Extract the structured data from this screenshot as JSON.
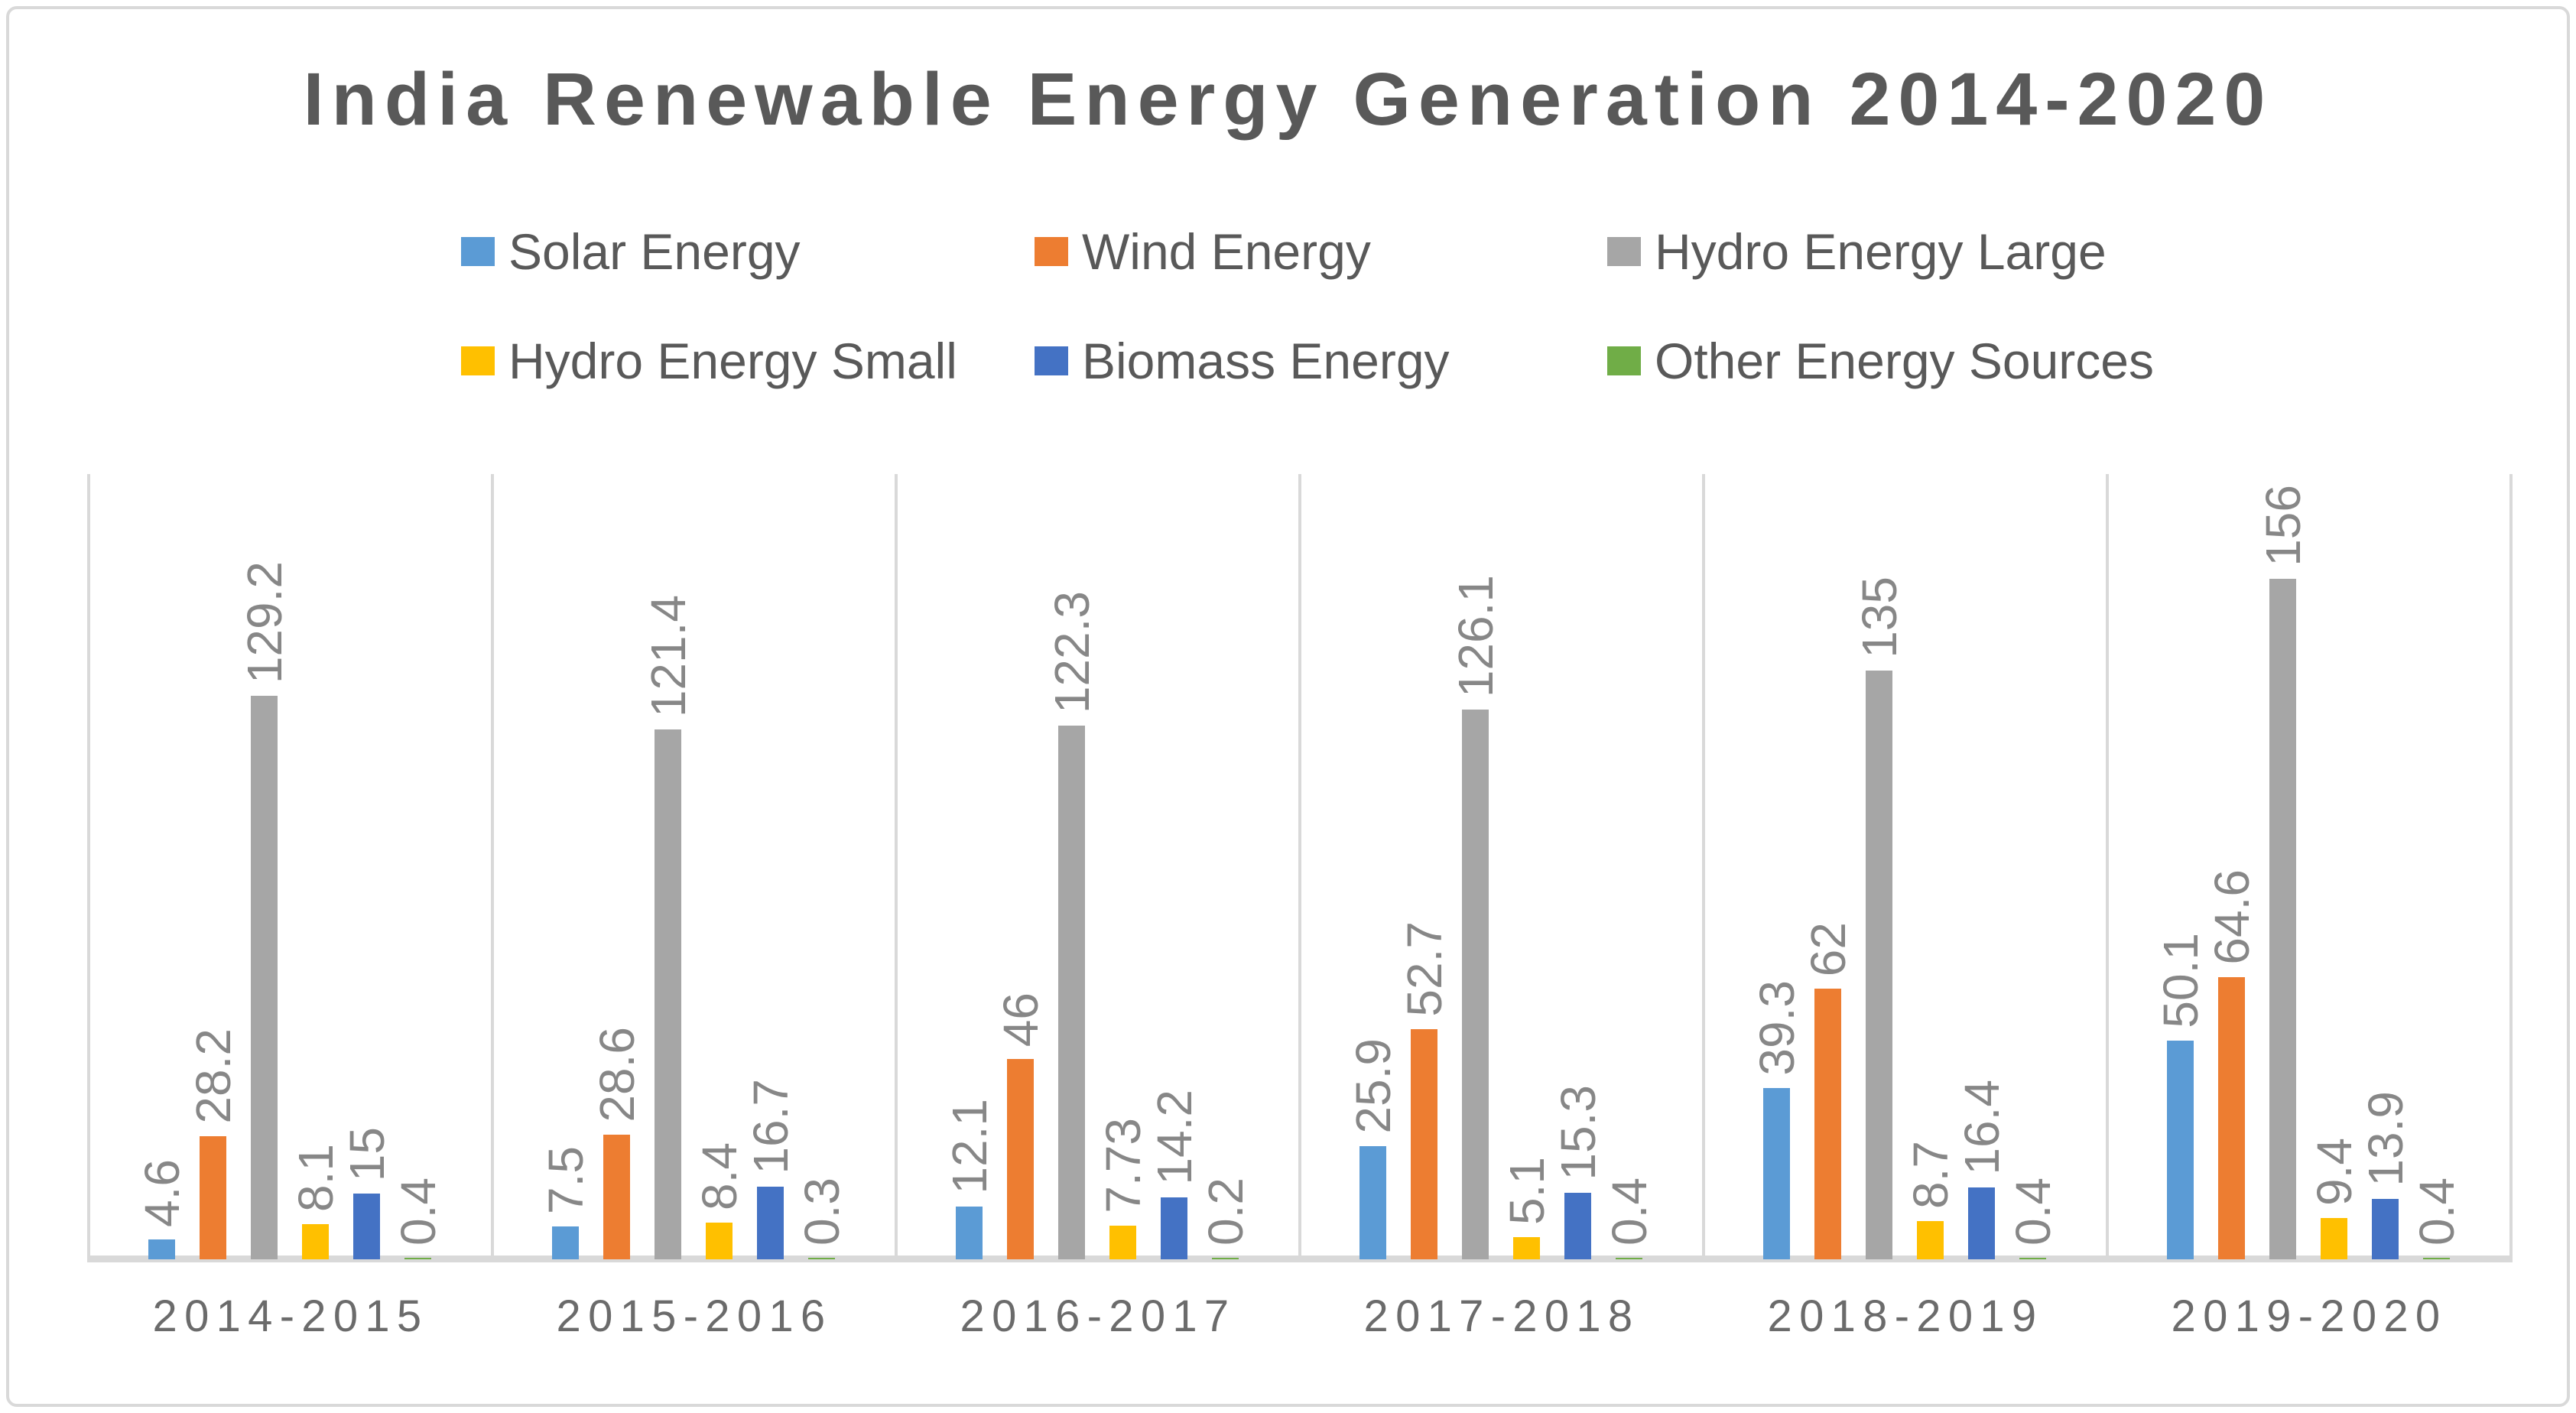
{
  "chart_data": {
    "type": "bar",
    "title": "India Renewable Energy Generation 2014-2020",
    "categories": [
      "2014-2015",
      "2015-2016",
      "2016-2017",
      "2017-2018",
      "2018-2019",
      "2019-2020"
    ],
    "series": [
      {
        "name": "Solar Energy",
        "color": "#5B9BD5",
        "values": [
          4.6,
          7.5,
          12.1,
          25.9,
          39.3,
          50.1
        ]
      },
      {
        "name": "Wind Energy",
        "color": "#ED7D31",
        "values": [
          28.2,
          28.6,
          46,
          52.7,
          62,
          64.6
        ]
      },
      {
        "name": "Hydro Energy Large",
        "color": "#A6A6A6",
        "values": [
          129.2,
          121.4,
          122.3,
          126.1,
          135,
          156
        ]
      },
      {
        "name": "Hydro Energy Small",
        "color": "#FFC000",
        "values": [
          8.1,
          8.4,
          7.73,
          5.1,
          8.7,
          9.4
        ]
      },
      {
        "name": "Biomass Energy",
        "color": "#4472C4",
        "values": [
          15,
          16.7,
          14.2,
          15.3,
          16.4,
          13.9
        ]
      },
      {
        "name": "Other Energy Sources",
        "color": "#70AD47",
        "values": [
          0.4,
          0.3,
          0.2,
          0.4,
          0.4,
          0.4
        ]
      }
    ],
    "ylim": [
      0,
      180
    ],
    "legend_position": "top, two rows",
    "grid": "vertical category divider lines only",
    "data_labels": "values shown above bars, rotated 90 degrees",
    "yaxis_labels_visible": false
  },
  "palette": {
    "chart_border": "#D9D9D9",
    "axis_line": "#D9D9D9",
    "gridline": "#D9D9D9",
    "title_text": "#595959",
    "legend_text": "#595959",
    "data_label_text": "#878787",
    "category_label_text": "#6B6B6B",
    "background": "#FFFFFF"
  }
}
